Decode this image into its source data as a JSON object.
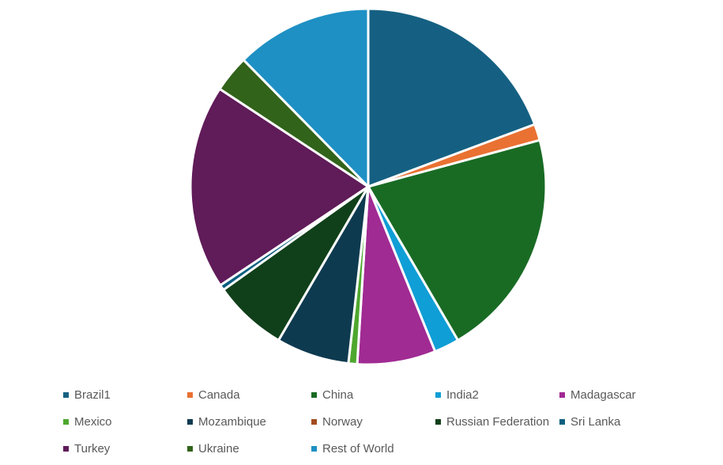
{
  "chart_data": {
    "type": "pie",
    "title": "",
    "legend_position": "bottom",
    "slices": [
      {
        "label": "Brazil1",
        "value": 19.5,
        "color": "#156082"
      },
      {
        "label": "Canada",
        "value": 1.5,
        "color": "#E97132"
      },
      {
        "label": "China",
        "value": 21.0,
        "color": "#196B24"
      },
      {
        "label": "India2",
        "value": 2.3,
        "color": "#0F9ED5"
      },
      {
        "label": "Madagascar",
        "value": 7.2,
        "color": "#A02B93"
      },
      {
        "label": "Mexico",
        "value": 0.8,
        "color": "#4EA72E"
      },
      {
        "label": "Mozambique",
        "value": 6.7,
        "color": "#0E3A50"
      },
      {
        "label": "Norway",
        "value": 0.0,
        "color": "#A24D1E"
      },
      {
        "label": "Russian Federation",
        "value": 6.8,
        "color": "#10401A"
      },
      {
        "label": "Sri Lanka",
        "value": 0.5,
        "color": "#0A5F80"
      },
      {
        "label": "Turkey",
        "value": 18.8,
        "color": "#601B59"
      },
      {
        "label": "Ukraine",
        "value": 3.4,
        "color": "#31631A"
      },
      {
        "label": "Rest of World",
        "value": 12.5,
        "color": "#1E90C4"
      }
    ]
  }
}
